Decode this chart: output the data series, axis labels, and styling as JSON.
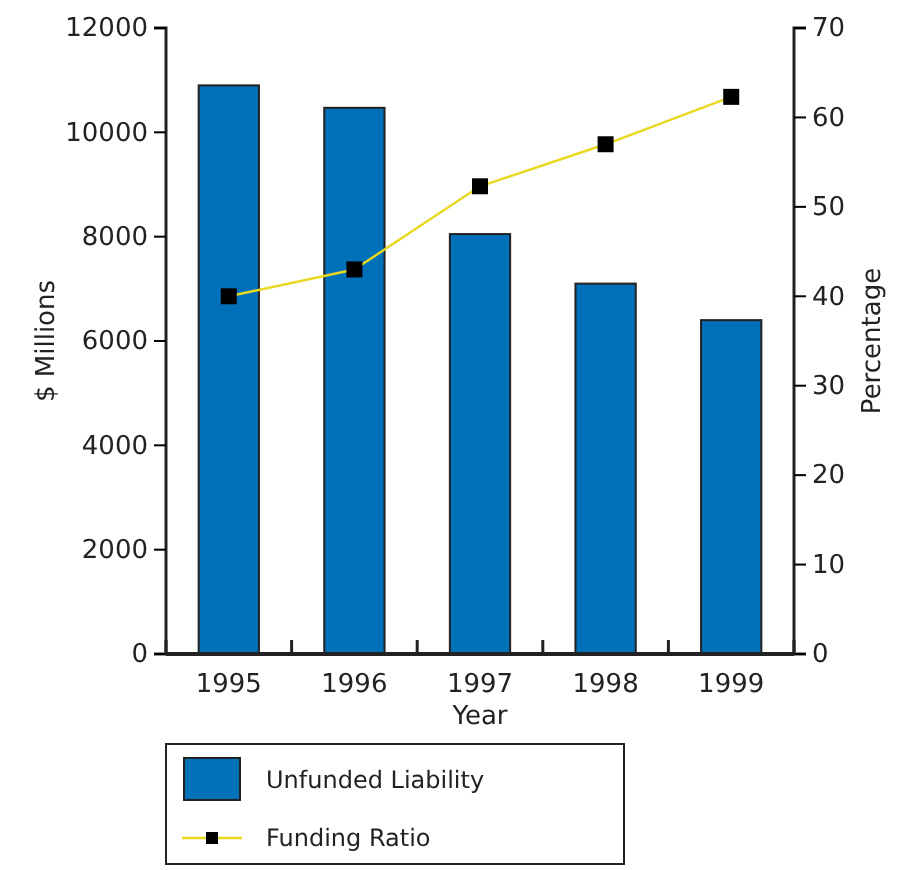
{
  "chart_data": {
    "type": "bar",
    "categories": [
      "1995",
      "1996",
      "1997",
      "1998",
      "1999"
    ],
    "xlabel": "Year",
    "ylabel": "$ Millions",
    "y2label": "Percentage",
    "series": [
      {
        "name": "Unfunded Liability",
        "color": "#0070b8",
        "values": [
          10900,
          10470,
          8050,
          7100,
          6400
        ]
      },
      {
        "name": "Funding Ratio",
        "type": "line",
        "axis": "y2",
        "color": "#e8d820",
        "marker": "square",
        "values": [
          40,
          43,
          52.3,
          57,
          62.3
        ]
      }
    ],
    "ylim": [
      0,
      12000
    ],
    "yticks": [
      0,
      2000,
      4000,
      6000,
      8000,
      10000,
      12000
    ],
    "y2lim": [
      0,
      70
    ],
    "y2ticks": [
      0,
      10,
      20,
      30,
      40,
      50,
      60,
      70
    ],
    "legend": "bottom left",
    "grid": false
  }
}
